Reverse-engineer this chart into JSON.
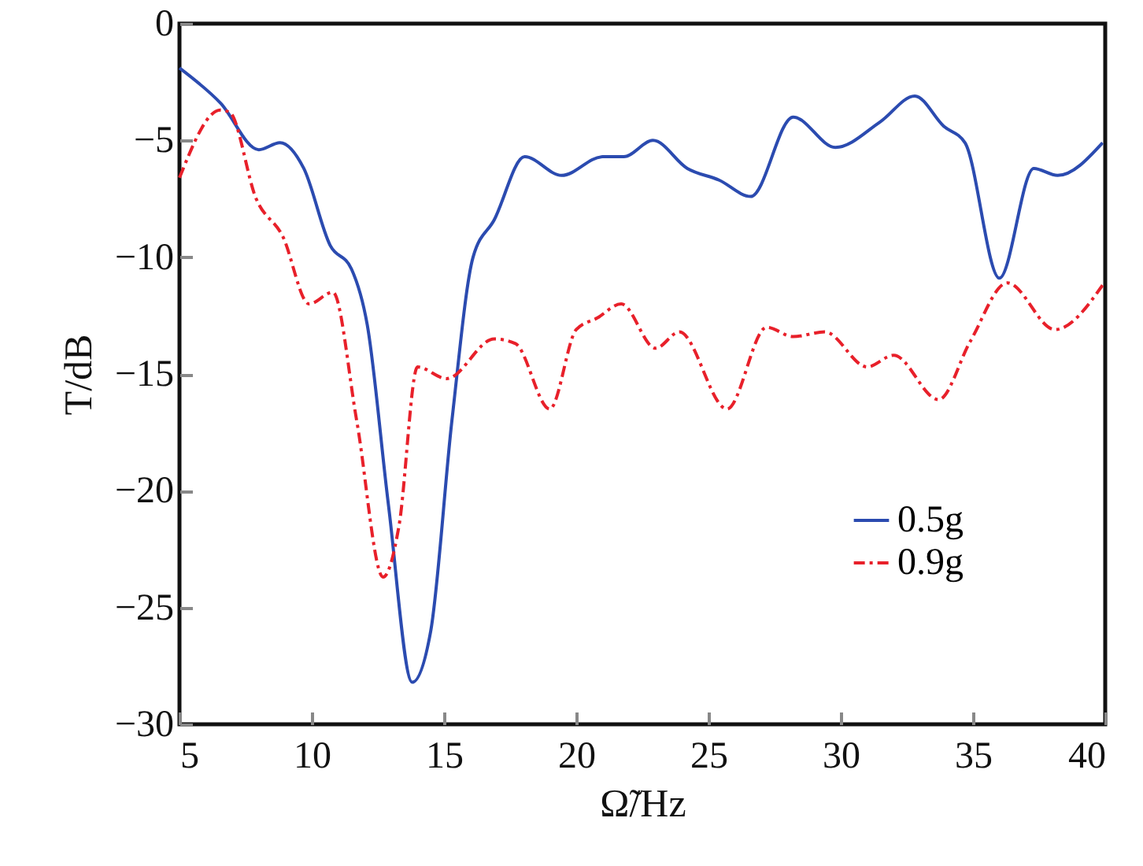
{
  "chart_data": {
    "type": "line",
    "xlabel": "Ω̃/Hz",
    "ylabel": "T/dB",
    "xlim": [
      5,
      40
    ],
    "xticks": [
      5,
      10,
      15,
      20,
      25,
      30,
      35,
      40
    ],
    "ylim": [
      -30,
      0
    ],
    "yticks": [
      {
        "value": -30,
        "label": "−30"
      },
      {
        "value": -25,
        "label": "−25"
      },
      {
        "value": -20,
        "label": "−20"
      },
      {
        "value": -15,
        "label": "−15"
      },
      {
        "value": -10,
        "label": "−10"
      },
      {
        "value": -5,
        "label": "−5"
      },
      0
    ],
    "grid": false,
    "legend": "bottom right",
    "marker": "none",
    "series": [
      {
        "name": "0.5g",
        "color": "#2b4bb0",
        "line_style": "solid",
        "x": [
          5,
          6.55,
          8.0,
          8.8,
          9.7,
          10.7,
          11.5,
          12.1,
          12.9,
          13.8,
          14.5,
          15.3,
          16.1,
          16.9,
          18.05,
          19.45,
          21.0,
          21.8,
          22.9,
          24.2,
          25.4,
          26.6,
          28.2,
          29.8,
          31.5,
          32.8,
          33.9,
          34.7,
          36.0,
          37.3,
          38.2,
          39.9
        ],
        "values": [
          -1.9,
          -3.4,
          -5.4,
          -5.1,
          -6.2,
          -9.5,
          -10.5,
          -12.9,
          -20.6,
          -28.2,
          -26,
          -17,
          -10,
          -8.4,
          -5.7,
          -6.5,
          -5.7,
          -5.7,
          -5,
          -6.2,
          -6.7,
          -7.4,
          -4,
          -5.3,
          -4.2,
          -3.1,
          -4.4,
          -5.1,
          -10.9,
          -6.2,
          -6.5,
          -5.1
        ]
      },
      {
        "name": "0.9g",
        "color": "#e8202a",
        "line_style": "dashed",
        "x": [
          5,
          6.55,
          6.9,
          7.9,
          8.9,
          9.9,
          10.8,
          11.7,
          12.7,
          13.3,
          14.0,
          15.1,
          16.9,
          17.7,
          19.0,
          20.0,
          20.8,
          21.7,
          23.0,
          23.9,
          25.7,
          27.2,
          28.2,
          29.4,
          31.0,
          32.0,
          33.7,
          34.9,
          36.3,
          38.1,
          39.9
        ],
        "values": [
          -6.6,
          -3.7,
          -3.8,
          -7.5,
          -9.1,
          -12,
          -11.5,
          -17,
          -23.7,
          -21.5,
          -14.7,
          -15.2,
          -13.5,
          -13.7,
          -16.5,
          -13.1,
          -12.6,
          -12,
          -13.9,
          -13.2,
          -16.5,
          -13,
          -13.4,
          -13.2,
          -14.7,
          -14.2,
          -16.1,
          -13.6,
          -11.1,
          -13.1,
          -11.2
        ]
      }
    ]
  }
}
